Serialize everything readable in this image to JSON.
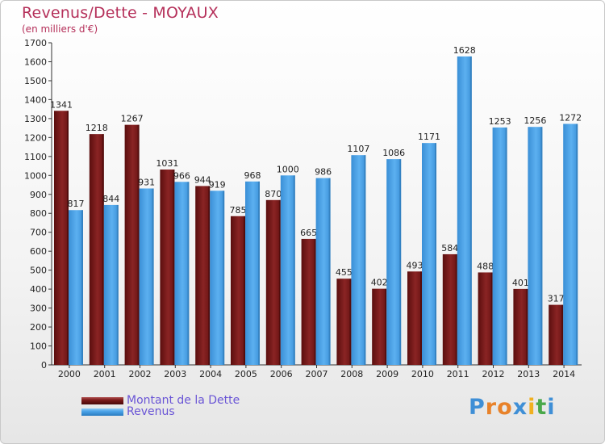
{
  "title": "Revenus/Dette - MOYAUX",
  "subtitle": "(en milliers d'€)",
  "colors": {
    "title": "#b5305a",
    "dette": "#7a1a1a",
    "revenus": "#4aa3e8",
    "legend_text": "#6a55d6"
  },
  "legend": [
    {
      "label": "Montant de la Dette",
      "color": "#7a1a1a"
    },
    {
      "label": "Revenus",
      "color": "#4aa3e8"
    }
  ],
  "logo": {
    "text": "Proxiti",
    "letters": [
      "P",
      "r",
      "o",
      "x",
      "i",
      "t",
      "i"
    ],
    "letter_colors": [
      "#3f8fd6",
      "#e8822a",
      "#e8822a",
      "#3f8fd6",
      "#f0b020",
      "#4aa84a",
      "#3f8fd6"
    ]
  },
  "chart_data": {
    "type": "bar",
    "categories": [
      "2000",
      "2001",
      "2002",
      "2003",
      "2004",
      "2005",
      "2006",
      "2007",
      "2008",
      "2009",
      "2010",
      "2011",
      "2012",
      "2013",
      "2014"
    ],
    "series": [
      {
        "name": "Montant de la Dette",
        "values": [
          1341,
          1218,
          1267,
          1031,
          944,
          785,
          870,
          665,
          455,
          402,
          493,
          584,
          488,
          401,
          317
        ]
      },
      {
        "name": "Revenus",
        "values": [
          817,
          844,
          931,
          966,
          919,
          968,
          1000,
          986,
          1107,
          1086,
          1171,
          1628,
          1253,
          1256,
          1272
        ]
      }
    ],
    "ylim": [
      0,
      1700
    ],
    "ytick_step": 100,
    "grid": false,
    "legend_position": "bottom-left"
  }
}
